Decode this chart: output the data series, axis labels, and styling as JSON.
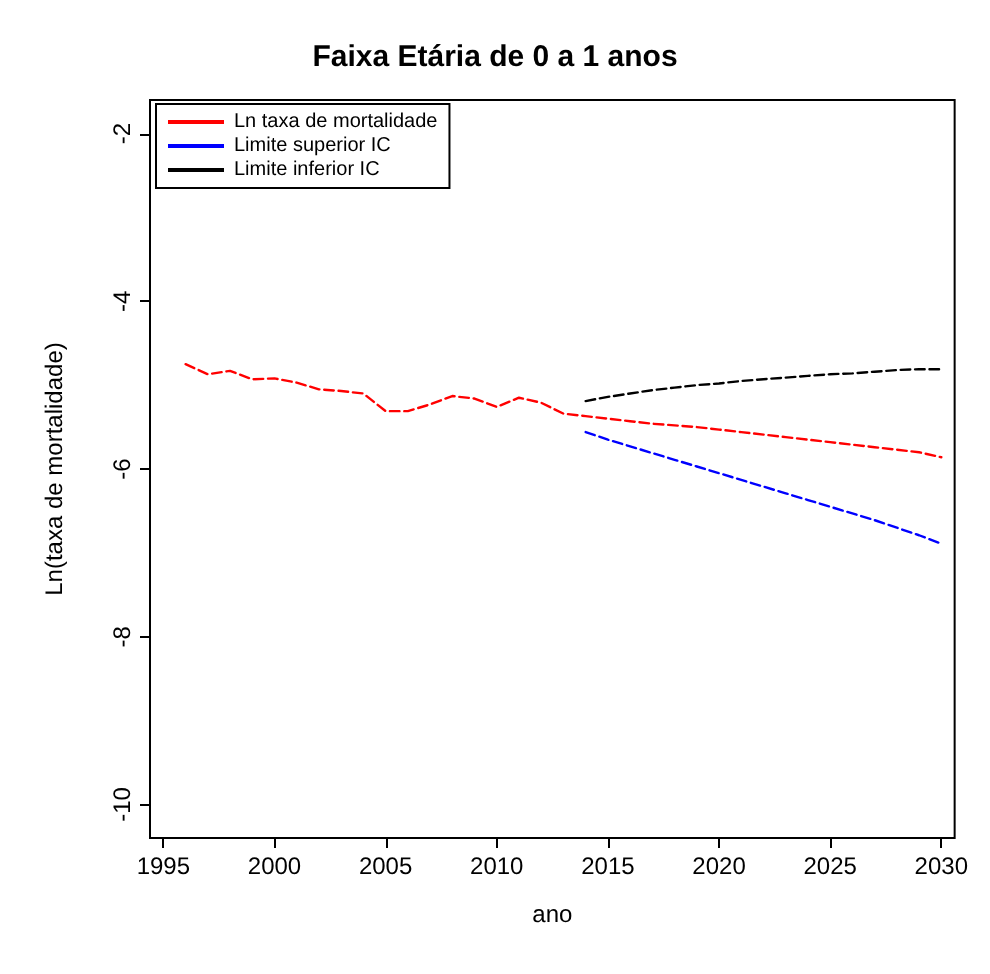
{
  "chart_data": {
    "type": "line",
    "title": "Faixa Etária de 0 a 1 anos",
    "xlabel": "ano",
    "ylabel": "Ln(taxa de mortalidade)",
    "xlim": [
      1994.4,
      2030.6
    ],
    "ylim": [
      -10.4,
      -1.6
    ],
    "xticks": [
      1995,
      2000,
      2005,
      2010,
      2015,
      2020,
      2025,
      2030
    ],
    "yticks": [
      -10,
      -8,
      -6,
      -4,
      -2
    ],
    "grid": false,
    "legend": "top left",
    "marker": "none",
    "line_style": "dashed",
    "series": [
      {
        "name": "Ln taxa de mortalidade",
        "color": "#ff0000",
        "x": [
          1996,
          1997,
          1998,
          1999,
          2000,
          2001,
          2002,
          2003,
          2004,
          2005,
          2006,
          2007,
          2008,
          2009,
          2010,
          2011,
          2012,
          2013,
          2014,
          2015,
          2016,
          2017,
          2018,
          2019,
          2020,
          2021,
          2022,
          2023,
          2024,
          2025,
          2026,
          2027,
          2028,
          2029,
          2030
        ],
        "values": [
          -4.75,
          -4.87,
          -4.83,
          -4.93,
          -4.92,
          -4.97,
          -5.05,
          -5.07,
          -5.1,
          -5.31,
          -5.31,
          -5.23,
          -5.13,
          -5.16,
          -5.26,
          -5.15,
          -5.21,
          -5.34,
          -5.37,
          -5.4,
          -5.43,
          -5.46,
          -5.48,
          -5.5,
          -5.53,
          -5.56,
          -5.59,
          -5.62,
          -5.65,
          -5.68,
          -5.71,
          -5.74,
          -5.77,
          -5.8,
          -5.86
        ]
      },
      {
        "name": "Limite superior IC",
        "color": "#0000ff",
        "x": [
          2014,
          2015,
          2016,
          2017,
          2018,
          2019,
          2020,
          2021,
          2022,
          2023,
          2024,
          2025,
          2026,
          2027,
          2028,
          2029,
          2030
        ],
        "values": [
          -5.56,
          -5.65,
          -5.73,
          -5.81,
          -5.89,
          -5.97,
          -6.05,
          -6.13,
          -6.21,
          -6.29,
          -6.37,
          -6.45,
          -6.53,
          -6.61,
          -6.7,
          -6.79,
          -6.89
        ]
      },
      {
        "name": "Limite inferior IC",
        "color": "#000000",
        "x": [
          2014,
          2015,
          2016,
          2017,
          2018,
          2019,
          2020,
          2021,
          2022,
          2023,
          2024,
          2025,
          2026,
          2027,
          2028,
          2029,
          2030
        ],
        "values": [
          -5.19,
          -5.14,
          -5.1,
          -5.06,
          -5.03,
          -5.0,
          -4.98,
          -4.95,
          -4.93,
          -4.91,
          -4.89,
          -4.87,
          -4.86,
          -4.84,
          -4.82,
          -4.81,
          -4.81
        ]
      }
    ]
  }
}
